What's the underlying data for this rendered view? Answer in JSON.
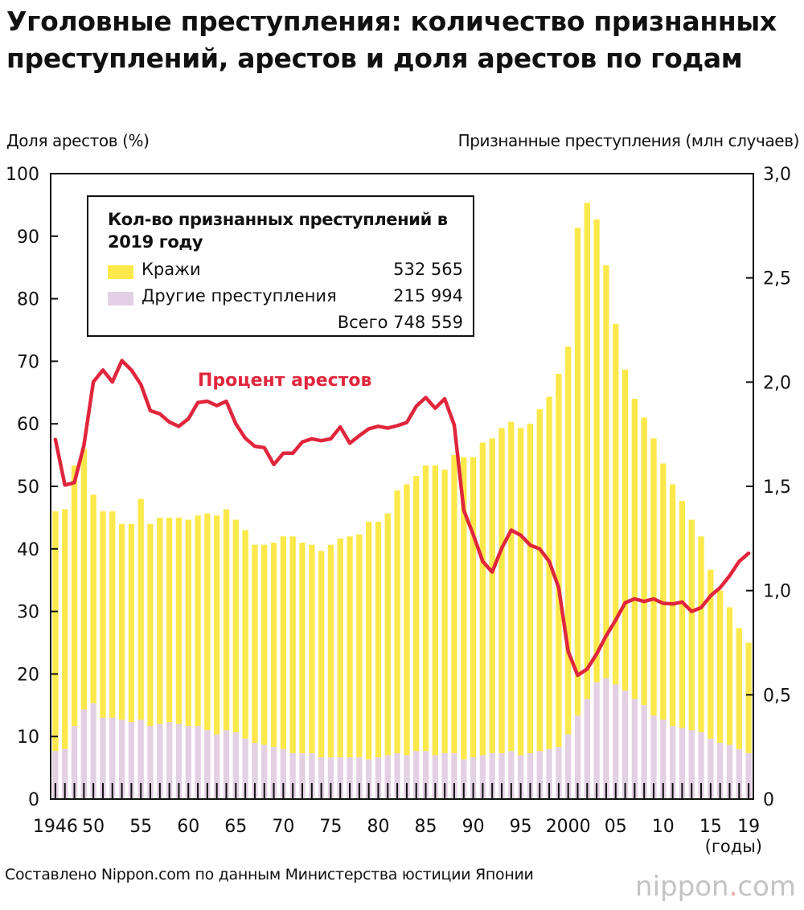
{
  "title": "Уголовные преступления: количество признанных преступлений, арестов и доля арестов по годам",
  "source": "Составлено Nippon.com по данным Министерства юстиции Японии",
  "brand": {
    "main": "nippon",
    "dot": ".",
    "tld": "com"
  },
  "colors": {
    "theft": "#fbe94c",
    "other": "#e3d0e4",
    "rate": "#e0263c",
    "axis": "#111111"
  },
  "legend": {
    "title": "Кол-во признанных преступлений в 2019 году",
    "theft_label": "Кражи",
    "theft_value": "532 565",
    "other_label": "Другие преступления",
    "other_value": "215 994",
    "total_label": "Всего 748 559"
  },
  "chart_data": {
    "type": "bar",
    "title": "Уголовные преступления: количество признанных преступлений, арестов и доля арестов по годам",
    "ylabel_left": "Доля арестов (%)",
    "ylabel_right": "Признанные преступления (млн случаев)",
    "x_unit": "(годы)",
    "ylim_left": [
      0,
      100
    ],
    "ylim_right": [
      0,
      3.0
    ],
    "left_ticks": [
      "0",
      "10",
      "20",
      "30",
      "40",
      "50",
      "60",
      "70",
      "80",
      "90",
      "100"
    ],
    "right_ticks": [
      "0",
      "0,5",
      "1,0",
      "1,5",
      "2,0",
      "2,5",
      "3,0"
    ],
    "x_tick_labels": [
      {
        "year": 1946,
        "label": "1946"
      },
      {
        "year": 1950,
        "label": "50"
      },
      {
        "year": 1955,
        "label": "55"
      },
      {
        "year": 1960,
        "label": "60"
      },
      {
        "year": 1965,
        "label": "65"
      },
      {
        "year": 1970,
        "label": "70"
      },
      {
        "year": 1975,
        "label": "75"
      },
      {
        "year": 1980,
        "label": "80"
      },
      {
        "year": 1985,
        "label": "85"
      },
      {
        "year": 1990,
        "label": "90"
      },
      {
        "year": 1995,
        "label": "95"
      },
      {
        "year": 2000,
        "label": "2000"
      },
      {
        "year": 2005,
        "label": "05"
      },
      {
        "year": 2010,
        "label": "10"
      },
      {
        "year": 2015,
        "label": "15"
      },
      {
        "year": 2019,
        "label": "19"
      }
    ],
    "years": [
      1946,
      1947,
      1948,
      1949,
      1950,
      1951,
      1952,
      1953,
      1954,
      1955,
      1956,
      1957,
      1958,
      1959,
      1960,
      1961,
      1962,
      1963,
      1964,
      1965,
      1966,
      1967,
      1968,
      1969,
      1970,
      1971,
      1972,
      1973,
      1974,
      1975,
      1976,
      1977,
      1978,
      1979,
      1980,
      1981,
      1982,
      1983,
      1984,
      1985,
      1986,
      1987,
      1988,
      1989,
      1990,
      1991,
      1992,
      1993,
      1994,
      1995,
      1996,
      1997,
      1998,
      1999,
      2000,
      2001,
      2002,
      2003,
      2004,
      2005,
      2006,
      2007,
      2008,
      2009,
      2010,
      2011,
      2012,
      2013,
      2014,
      2015,
      2016,
      2017,
      2018,
      2019
    ],
    "series": [
      {
        "name": "Кражи",
        "axis": "right",
        "unit": "млн случаев",
        "values": [
          1.15,
          1.15,
          1.25,
          1.25,
          1.0,
          0.99,
          0.99,
          0.94,
          0.95,
          1.06,
          0.97,
          0.99,
          0.98,
          0.99,
          0.99,
          1.01,
          1.04,
          1.05,
          1.06,
          1.02,
          1.0,
          0.95,
          0.96,
          0.98,
          1.02,
          1.04,
          1.01,
          1.0,
          0.99,
          1.02,
          1.05,
          1.06,
          1.07,
          1.14,
          1.13,
          1.16,
          1.26,
          1.3,
          1.32,
          1.37,
          1.39,
          1.36,
          1.43,
          1.45,
          1.44,
          1.5,
          1.51,
          1.56,
          1.58,
          1.57,
          1.58,
          1.64,
          1.69,
          1.79,
          1.86,
          2.34,
          2.38,
          2.22,
          1.98,
          1.73,
          1.54,
          1.44,
          1.38,
          1.33,
          1.23,
          1.16,
          1.09,
          1.01,
          0.94,
          0.81,
          0.73,
          0.66,
          0.58,
          0.53
        ]
      },
      {
        "name": "Другие преступления",
        "axis": "right",
        "unit": "млн случаев",
        "values": [
          0.23,
          0.24,
          0.35,
          0.43,
          0.46,
          0.39,
          0.39,
          0.38,
          0.37,
          0.38,
          0.35,
          0.36,
          0.37,
          0.36,
          0.35,
          0.35,
          0.33,
          0.31,
          0.33,
          0.32,
          0.29,
          0.27,
          0.26,
          0.25,
          0.24,
          0.22,
          0.22,
          0.22,
          0.2,
          0.2,
          0.2,
          0.2,
          0.2,
          0.19,
          0.2,
          0.21,
          0.22,
          0.21,
          0.23,
          0.23,
          0.21,
          0.22,
          0.22,
          0.19,
          0.2,
          0.21,
          0.22,
          0.22,
          0.23,
          0.21,
          0.22,
          0.23,
          0.24,
          0.25,
          0.31,
          0.4,
          0.48,
          0.56,
          0.58,
          0.55,
          0.52,
          0.48,
          0.45,
          0.4,
          0.38,
          0.35,
          0.34,
          0.33,
          0.32,
          0.29,
          0.27,
          0.26,
          0.24,
          0.22
        ]
      },
      {
        "name": "Процент арестов",
        "axis": "left",
        "unit": "%",
        "values": [
          57.5,
          50.2,
          50.6,
          56.5,
          66.7,
          68.6,
          66.7,
          70.1,
          68.6,
          66.3,
          62.1,
          61.6,
          60.3,
          59.6,
          60.8,
          63.4,
          63.6,
          62.9,
          63.6,
          60.0,
          57.7,
          56.4,
          56.2,
          53.5,
          55.3,
          55.3,
          57.1,
          57.6,
          57.3,
          57.6,
          59.5,
          56.9,
          58.1,
          59.2,
          59.6,
          59.3,
          59.7,
          60.2,
          62.8,
          64.2,
          62.5,
          64.0,
          59.8,
          46.2,
          42.3,
          38.0,
          36.3,
          40.1,
          43.0,
          42.2,
          40.6,
          40.0,
          38.0,
          33.8,
          23.6,
          19.8,
          20.8,
          23.2,
          26.1,
          28.6,
          31.4,
          32.0,
          31.6,
          32.0,
          31.3,
          31.2,
          31.5,
          30.0,
          30.6,
          32.5,
          33.8,
          35.7,
          38.0,
          39.3
        ]
      }
    ]
  }
}
